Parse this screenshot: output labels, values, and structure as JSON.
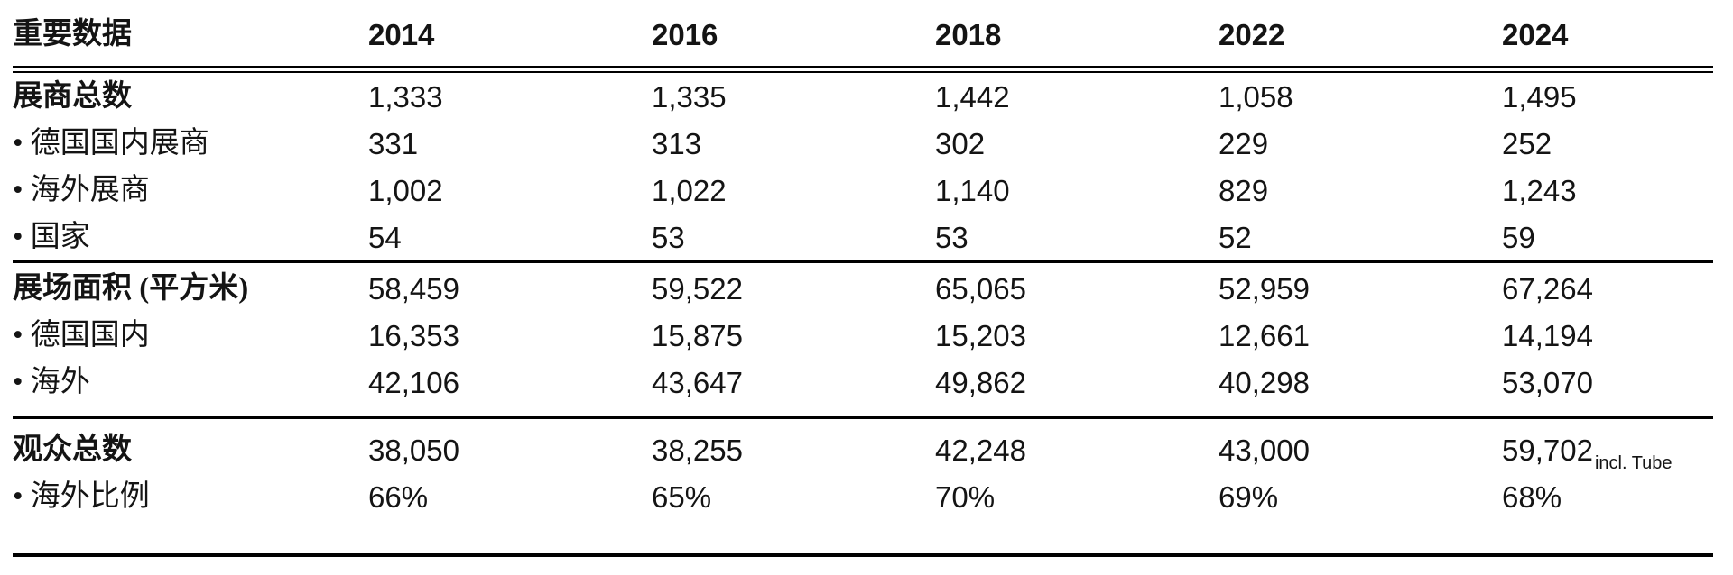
{
  "table": {
    "header": {
      "label": "重要数据",
      "years": [
        "2014",
        "2016",
        "2018",
        "2022",
        "2024"
      ]
    },
    "rows": [
      {
        "label": "展商总数",
        "values": [
          "1,333",
          "1,335",
          "1,442",
          "1,058",
          "1,495"
        ]
      },
      {
        "label": "• 德国国内展商",
        "values": [
          "331",
          "313",
          "302",
          "229",
          "252"
        ]
      },
      {
        "label": "• 海外展商",
        "values": [
          "1,002",
          "1,022",
          "1,140",
          "829",
          "1,243"
        ]
      },
      {
        "label": "• 国家",
        "values": [
          "54",
          "53",
          "53",
          "52",
          "59"
        ]
      },
      {
        "label": "展场面积 (平方米)",
        "values": [
          "58,459",
          "59,522",
          "65,065",
          "52,959",
          "67,264"
        ]
      },
      {
        "label": "• 德国国内",
        "values": [
          "16,353",
          "15,875",
          "15,203",
          "12,661",
          "14,194"
        ]
      },
      {
        "label": "• 海外",
        "values": [
          "42,106",
          "43,647",
          "49,862",
          "40,298",
          "53,070"
        ]
      },
      {
        "label": "观众总数",
        "values": [
          "38,050",
          "38,255",
          "42,248",
          "43,000",
          "59,702"
        ],
        "note": "incl. Tube"
      },
      {
        "label": "• 海外比例",
        "values": [
          "66%",
          "65%",
          "70%",
          "69%",
          "68%"
        ]
      }
    ]
  },
  "chart_data": {
    "type": "table",
    "columns": [
      "重要数据",
      "2014",
      "2016",
      "2018",
      "2022",
      "2024"
    ],
    "rows": [
      [
        "展商总数",
        "1,333",
        "1,335",
        "1,442",
        "1,058",
        "1,495"
      ],
      [
        "• 德国国内展商",
        "331",
        "313",
        "302",
        "229",
        "252"
      ],
      [
        "• 海外展商",
        "1,002",
        "1,022",
        "1,140",
        "829",
        "1,243"
      ],
      [
        "• 国家",
        "54",
        "53",
        "53",
        "52",
        "59"
      ],
      [
        "展场面积 (平方米)",
        "58,459",
        "59,522",
        "65,065",
        "52,959",
        "67,264"
      ],
      [
        "• 德国国内",
        "16,353",
        "15,875",
        "15,203",
        "12,661",
        "14,194"
      ],
      [
        "• 海外",
        "42,106",
        "43,647",
        "49,862",
        "40,298",
        "53,070"
      ],
      [
        "观众总数",
        "38,050",
        "38,255",
        "42,248",
        "43,000",
        "59,702 incl. Tube"
      ],
      [
        "• 海外比例",
        "66%",
        "65%",
        "70%",
        "69%",
        "68%"
      ]
    ]
  },
  "colors": {
    "text": "#141414",
    "rule": "#000000",
    "background": "#ffffff"
  }
}
